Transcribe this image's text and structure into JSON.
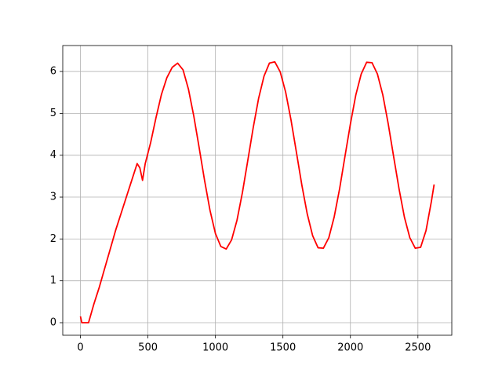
{
  "chart_data": {
    "type": "line",
    "color": "#ff0000",
    "grid": true,
    "x": [
      0,
      10,
      60,
      100,
      140,
      180,
      220,
      260,
      300,
      340,
      380,
      420,
      440,
      460,
      480,
      520,
      560,
      600,
      640,
      680,
      720,
      760,
      800,
      840,
      880,
      920,
      960,
      1000,
      1040,
      1080,
      1120,
      1160,
      1200,
      1240,
      1280,
      1320,
      1360,
      1400,
      1440,
      1480,
      1520,
      1560,
      1600,
      1640,
      1680,
      1720,
      1760,
      1800,
      1840,
      1880,
      1920,
      1960,
      2000,
      2040,
      2080,
      2120,
      2160,
      2200,
      2240,
      2280,
      2320,
      2360,
      2400,
      2440,
      2480,
      2520,
      2560,
      2600,
      2620
    ],
    "values": [
      0.15,
      0,
      0,
      0.45,
      0.85,
      1.3,
      1.75,
      2.2,
      2.6,
      3.0,
      3.4,
      3.8,
      3.7,
      3.4,
      3.8,
      4.3,
      4.9,
      5.45,
      5.85,
      6.1,
      6.2,
      6.04,
      5.58,
      4.93,
      4.17,
      3.39,
      2.68,
      2.13,
      1.82,
      1.76,
      1.98,
      2.45,
      3.11,
      3.88,
      4.66,
      5.36,
      5.89,
      6.2,
      6.23,
      5.99,
      5.51,
      4.84,
      4.07,
      3.29,
      2.6,
      2.08,
      1.79,
      1.78,
      2.03,
      2.53,
      3.2,
      3.98,
      4.75,
      5.44,
      5.94,
      6.22,
      6.21,
      5.94,
      5.44,
      4.75,
      3.97,
      3.2,
      2.52,
      2.03,
      1.78,
      1.8,
      2.2,
      2.9,
      3.3
    ],
    "xlim": [
      -131,
      2751
    ],
    "xticks": [
      0,
      500,
      1000,
      1500,
      2000,
      2500
    ],
    "ylim": [
      -0.3,
      6.62
    ],
    "yticks": [
      0,
      1,
      2,
      3,
      4,
      5,
      6
    ]
  }
}
